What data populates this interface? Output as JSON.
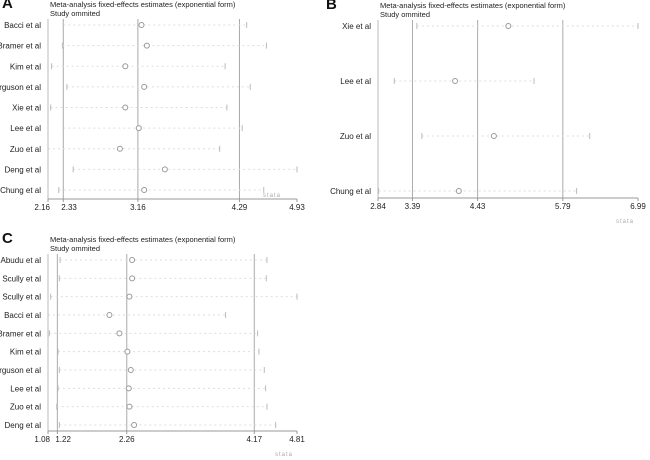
{
  "chart_data": [
    {
      "panel": "A",
      "type": "forest",
      "title": "Meta-analysis fixed-effects estimates (exponential form)",
      "subtitle": "Study ommited",
      "xlim": [
        2.16,
        4.93
      ],
      "xticks": [
        "2.16",
        "2.33",
        "3.16",
        "4.29",
        "4.93"
      ],
      "reference_lines": [
        2.33,
        3.16,
        4.29
      ],
      "studies": [
        {
          "name": "Bacci et al",
          "estimate": 3.2,
          "lower": 2.33,
          "upper": 4.37
        },
        {
          "name": "Bramer et al",
          "estimate": 3.26,
          "lower": 2.32,
          "upper": 4.59
        },
        {
          "name": "Kim et al",
          "estimate": 3.02,
          "lower": 2.2,
          "upper": 4.13
        },
        {
          "name": "Ferguson et al",
          "estimate": 3.23,
          "lower": 2.37,
          "upper": 4.41
        },
        {
          "name": "Xie et al",
          "estimate": 3.02,
          "lower": 2.19,
          "upper": 4.15
        },
        {
          "name": "Lee et al",
          "estimate": 3.17,
          "lower": 2.33,
          "upper": 4.32
        },
        {
          "name": "Zuo et al",
          "estimate": 2.96,
          "lower": 2.16,
          "upper": 4.07
        },
        {
          "name": "Deng et al",
          "estimate": 3.46,
          "lower": 2.44,
          "upper": 4.93
        },
        {
          "name": "Chung et al",
          "estimate": 3.23,
          "lower": 2.28,
          "upper": 4.56
        }
      ],
      "logo": "stata"
    },
    {
      "panel": "B",
      "type": "forest",
      "title": "Meta-analysis fixed-effects estimates (exponential form)",
      "subtitle": "Study ommited",
      "xlim": [
        2.84,
        6.99
      ],
      "xticks": [
        "2.84",
        "3.39",
        "4.43",
        "5.79",
        "6.99"
      ],
      "reference_lines": [
        3.39,
        4.43,
        5.79
      ],
      "studies": [
        {
          "name": "Xie et al",
          "estimate": 4.92,
          "lower": 3.46,
          "upper": 6.99
        },
        {
          "name": "Lee et al",
          "estimate": 4.07,
          "lower": 3.1,
          "upper": 5.33
        },
        {
          "name": "Zuo et al",
          "estimate": 4.69,
          "lower": 3.54,
          "upper": 6.22
        },
        {
          "name": "Chung et al",
          "estimate": 4.13,
          "lower": 2.85,
          "upper": 6.01
        }
      ],
      "logo": "stata"
    },
    {
      "panel": "C",
      "type": "forest",
      "title": "Meta-analysis fixed-effects estimates (exponential form)",
      "subtitle": "Study ommited",
      "xlim": [
        1.08,
        4.81
      ],
      "xticks": [
        "1.08",
        "1.22",
        "2.26",
        "4.17",
        "4.81"
      ],
      "reference_lines": [
        1.22,
        2.26,
        4.17
      ],
      "studies": [
        {
          "name": "Abudu et al",
          "estimate": 2.34,
          "lower": 1.26,
          "upper": 4.36
        },
        {
          "name": "Scully et al",
          "estimate": 2.34,
          "lower": 1.25,
          "upper": 4.35
        },
        {
          "name": "Scully et al",
          "estimate": 2.3,
          "lower": 1.12,
          "upper": 4.81
        },
        {
          "name": "Bacci et al",
          "estimate": 2.0,
          "lower": 1.08,
          "upper": 3.74
        },
        {
          "name": "Bramer et al",
          "estimate": 2.15,
          "lower": 1.1,
          "upper": 4.22
        },
        {
          "name": "Kim et al",
          "estimate": 2.27,
          "lower": 1.23,
          "upper": 4.24
        },
        {
          "name": "Ferguson et al",
          "estimate": 2.32,
          "lower": 1.25,
          "upper": 4.32
        },
        {
          "name": "Lee et al",
          "estimate": 2.29,
          "lower": 1.23,
          "upper": 4.34
        },
        {
          "name": "Zuo et al",
          "estimate": 2.3,
          "lower": 1.21,
          "upper": 4.36
        },
        {
          "name": "Deng et al",
          "estimate": 2.37,
          "lower": 1.25,
          "upper": 4.49
        }
      ],
      "logo": "stata"
    }
  ]
}
